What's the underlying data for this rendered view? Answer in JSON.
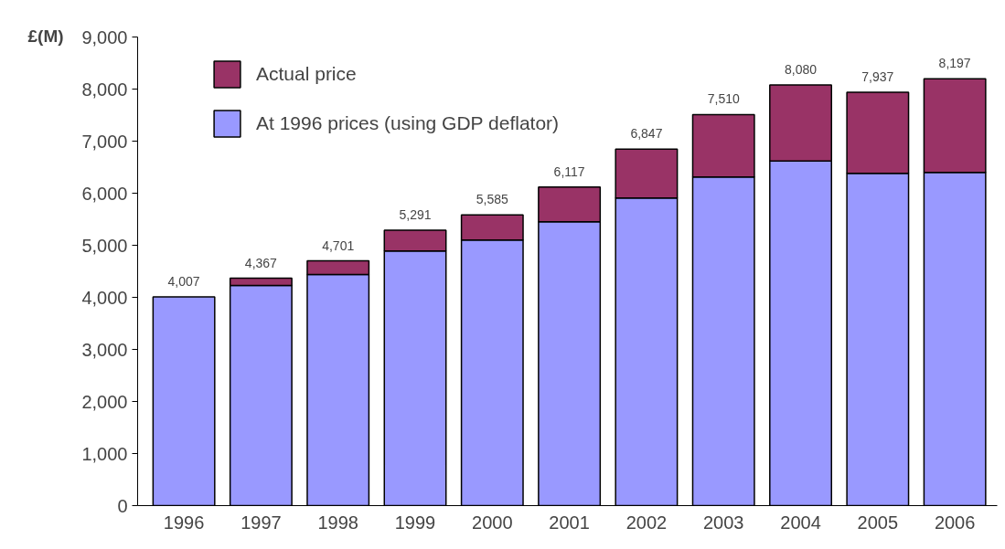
{
  "chart_data": {
    "type": "bar",
    "stacked": true,
    "ylabel": "£(M)",
    "categories": [
      "1996",
      "1997",
      "1998",
      "1999",
      "2000",
      "2001",
      "2002",
      "2003",
      "2004",
      "2005",
      "2006"
    ],
    "series": [
      {
        "name": "At 1996 prices (using GDP deflator)",
        "color": "#9999ff",
        "values": [
          4007,
          4230,
          4440,
          4890,
          5100,
          5450,
          5910,
          6310,
          6620,
          6380,
          6400
        ]
      },
      {
        "name": "Actual price",
        "color": "#993366",
        "values": [
          null,
          137,
          261,
          401,
          485,
          667,
          937,
          1200,
          1460,
          1557,
          1797
        ]
      }
    ],
    "totals": [
      "4,007",
      "4,367",
      "4,701",
      "5,291",
      "5,585",
      "6,117",
      "6,847",
      "7,510",
      "8,080",
      "7,937",
      "8,197"
    ],
    "ylim": [
      0,
      9000
    ],
    "yticks": [
      {
        "value": 0,
        "label": "0"
      },
      {
        "value": 1000,
        "label": "1,000"
      },
      {
        "value": 2000,
        "label": "2,000"
      },
      {
        "value": 3000,
        "label": "3,000"
      },
      {
        "value": 4000,
        "label": "4,000"
      },
      {
        "value": 5000,
        "label": "5,000"
      },
      {
        "value": 6000,
        "label": "6,000"
      },
      {
        "value": 7000,
        "label": "7,000"
      },
      {
        "value": 8000,
        "label": "8,000"
      },
      {
        "value": 9000,
        "label": "9,000"
      }
    ],
    "grid": false,
    "legend": "top left"
  }
}
